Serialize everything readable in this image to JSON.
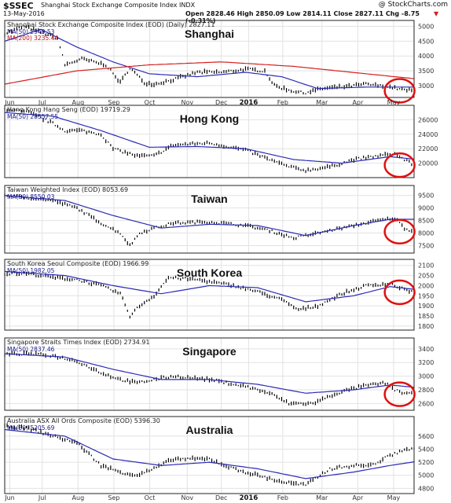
{
  "header": {
    "symbol": "$SSEC",
    "source": "Shanghai Stock Exchange Composite Index  INDX",
    "site": "@ StockCharts.com",
    "date": "13-May-2016",
    "ohlc": "Open 2828.46  High 2850.09  Low 2814.11  Close 2827.11  Chg -8.75 (-0.31%)",
    "chg_arrow": "▼"
  },
  "colors": {
    "price": "#000000",
    "ma50": "#2b2bb8",
    "ma200": "#d42020",
    "circle": "#e01010"
  },
  "x_axis": {
    "months": [
      "Jun",
      "Jul",
      "Aug",
      "Sep",
      "Oct",
      "Nov",
      "Dec",
      "2016",
      "Feb",
      "Mar",
      "Apr",
      "May"
    ],
    "bold_month": "2016"
  },
  "chart_data": [
    {
      "type": "line",
      "title": "Shanghai Stock Exchange Composite Index (EOD) (Daily) 2827.11",
      "label": "Shanghai",
      "ma_labels": [
        "MA(50) 2949.53",
        "MA(200) 3235.44"
      ],
      "yticks": [
        "5000",
        "4500",
        "4000",
        "3500",
        "3000"
      ],
      "ylim": [
        2600,
        5200
      ],
      "price_anchors": [
        [
          0,
          4750
        ],
        [
          8,
          5000
        ],
        [
          22,
          4600
        ],
        [
          25,
          3700
        ],
        [
          32,
          3900
        ],
        [
          42,
          3700
        ],
        [
          48,
          3100
        ],
        [
          52,
          3600
        ],
        [
          58,
          3100
        ],
        [
          62,
          3050
        ],
        [
          70,
          3200
        ],
        [
          80,
          3450
        ],
        [
          90,
          3450
        ],
        [
          100,
          3550
        ],
        [
          108,
          3500
        ],
        [
          112,
          3000
        ],
        [
          118,
          2850
        ],
        [
          124,
          2750
        ],
        [
          132,
          2900
        ],
        [
          140,
          2950
        ],
        [
          150,
          3050
        ],
        [
          160,
          2950
        ],
        [
          166,
          2850
        ],
        [
          170,
          2827
        ]
      ],
      "ma50_anchors": [
        [
          0,
          4500
        ],
        [
          15,
          4900
        ],
        [
          30,
          4300
        ],
        [
          45,
          3800
        ],
        [
          60,
          3400
        ],
        [
          80,
          3300
        ],
        [
          100,
          3450
        ],
        [
          115,
          3300
        ],
        [
          130,
          2900
        ],
        [
          150,
          2950
        ],
        [
          170,
          2950
        ]
      ],
      "ma200_anchors": [
        [
          0,
          3050
        ],
        [
          30,
          3500
        ],
        [
          60,
          3700
        ],
        [
          90,
          3800
        ],
        [
          120,
          3650
        ],
        [
          150,
          3400
        ],
        [
          170,
          3235
        ]
      ],
      "circle": true
    },
    {
      "type": "line",
      "title": "Hong Kong Hang Seng (EOD) 19719.29",
      "label": "Hong Kong",
      "ma_labels": [
        "MA(50) 20557.55"
      ],
      "yticks": [
        "26000",
        "24000",
        "22000",
        "20000"
      ],
      "ylim": [
        18000,
        28000
      ],
      "price_anchors": [
        [
          0,
          27500
        ],
        [
          10,
          27000
        ],
        [
          20,
          25500
        ],
        [
          25,
          24500
        ],
        [
          32,
          24500
        ],
        [
          40,
          24000
        ],
        [
          45,
          22000
        ],
        [
          50,
          21500
        ],
        [
          55,
          21000
        ],
        [
          62,
          21000
        ],
        [
          70,
          22500
        ],
        [
          85,
          22800
        ],
        [
          100,
          21800
        ],
        [
          110,
          20500
        ],
        [
          118,
          19500
        ],
        [
          125,
          19000
        ],
        [
          135,
          19500
        ],
        [
          145,
          20500
        ],
        [
          155,
          21000
        ],
        [
          162,
          21300
        ],
        [
          166,
          20500
        ],
        [
          170,
          19719
        ]
      ],
      "ma50_anchors": [
        [
          0,
          27000
        ],
        [
          20,
          26500
        ],
        [
          40,
          24500
        ],
        [
          60,
          22200
        ],
        [
          80,
          22300
        ],
        [
          100,
          22000
        ],
        [
          120,
          20500
        ],
        [
          140,
          20000
        ],
        [
          160,
          20900
        ],
        [
          170,
          20557
        ]
      ],
      "circle": true
    },
    {
      "type": "line",
      "title": "Taiwan Weighted Index (EOD) 8053.69",
      "label": "Taiwan",
      "ma_labels": [
        "MA(50) 8550.03"
      ],
      "yticks": [
        "9500",
        "9000",
        "8500",
        "8000",
        "7500"
      ],
      "ylim": [
        7200,
        9900
      ],
      "price_anchors": [
        [
          0,
          9500
        ],
        [
          10,
          9400
        ],
        [
          20,
          9300
        ],
        [
          30,
          9000
        ],
        [
          40,
          8400
        ],
        [
          48,
          8000
        ],
        [
          52,
          7500
        ],
        [
          56,
          8000
        ],
        [
          62,
          8200
        ],
        [
          70,
          8400
        ],
        [
          85,
          8450
        ],
        [
          100,
          8300
        ],
        [
          110,
          8100
        ],
        [
          120,
          7800
        ],
        [
          130,
          8000
        ],
        [
          145,
          8300
        ],
        [
          155,
          8500
        ],
        [
          162,
          8600
        ],
        [
          166,
          8200
        ],
        [
          170,
          8054
        ]
      ],
      "ma50_anchors": [
        [
          0,
          9500
        ],
        [
          25,
          9300
        ],
        [
          45,
          8700
        ],
        [
          65,
          8200
        ],
        [
          85,
          8350
        ],
        [
          105,
          8300
        ],
        [
          125,
          7900
        ],
        [
          145,
          8300
        ],
        [
          160,
          8550
        ],
        [
          170,
          8550
        ]
      ],
      "circle": true
    },
    {
      "type": "line",
      "title": "South Korea Seoul Composite (EOD) 1966.99",
      "label": "South Korea",
      "ma_labels": [
        "MA(50) 1982.05"
      ],
      "yticks": [
        "2100",
        "2050",
        "2000",
        "1950",
        "1900",
        "1850",
        "1800"
      ],
      "ylim": [
        1780,
        2130
      ],
      "price_anchors": [
        [
          0,
          2060
        ],
        [
          10,
          2060
        ],
        [
          20,
          2040
        ],
        [
          30,
          2030
        ],
        [
          40,
          2000
        ],
        [
          48,
          1960
        ],
        [
          52,
          1850
        ],
        [
          56,
          1900
        ],
        [
          62,
          1950
        ],
        [
          68,
          2040
        ],
        [
          80,
          2030
        ],
        [
          95,
          2000
        ],
        [
          105,
          1970
        ],
        [
          115,
          1930
        ],
        [
          122,
          1880
        ],
        [
          130,
          1900
        ],
        [
          140,
          1960
        ],
        [
          150,
          2000
        ],
        [
          160,
          2010
        ],
        [
          164,
          1990
        ],
        [
          170,
          1967
        ]
      ],
      "ma50_anchors": [
        [
          0,
          2070
        ],
        [
          25,
          2050
        ],
        [
          45,
          2000
        ],
        [
          65,
          1960
        ],
        [
          85,
          2000
        ],
        [
          105,
          1990
        ],
        [
          125,
          1920
        ],
        [
          145,
          1950
        ],
        [
          160,
          1995
        ],
        [
          170,
          1982
        ]
      ],
      "circle": true
    },
    {
      "type": "line",
      "title": "Singapore Straits Times Index (EOD) 2734.91",
      "label": "Singapore",
      "ma_labels": [
        "MA(50) 2837.46"
      ],
      "yticks": [
        "3400",
        "3200",
        "3000",
        "2800",
        "2600"
      ],
      "ylim": [
        2500,
        3560
      ],
      "price_anchors": [
        [
          0,
          3320
        ],
        [
          10,
          3330
        ],
        [
          20,
          3300
        ],
        [
          30,
          3220
        ],
        [
          40,
          3050
        ],
        [
          48,
          2950
        ],
        [
          55,
          2900
        ],
        [
          62,
          2950
        ],
        [
          70,
          3000
        ],
        [
          85,
          2950
        ],
        [
          100,
          2850
        ],
        [
          110,
          2750
        ],
        [
          118,
          2600
        ],
        [
          128,
          2600
        ],
        [
          138,
          2750
        ],
        [
          148,
          2850
        ],
        [
          158,
          2900
        ],
        [
          162,
          2800
        ],
        [
          166,
          2750
        ],
        [
          170,
          2735
        ]
      ],
      "ma50_anchors": [
        [
          0,
          3330
        ],
        [
          25,
          3280
        ],
        [
          45,
          3100
        ],
        [
          65,
          2950
        ],
        [
          85,
          2950
        ],
        [
          105,
          2880
        ],
        [
          125,
          2750
        ],
        [
          145,
          2800
        ],
        [
          160,
          2870
        ],
        [
          170,
          2837
        ]
      ],
      "circle": true
    },
    {
      "type": "line",
      "title": "Australia ASX All Ords Composite (EOD) 5396.30",
      "label": "Australia",
      "ma_labels": [
        "MA(50) 5205.69"
      ],
      "yticks": [
        "5600",
        "5400",
        "5200",
        "5000",
        "4800"
      ],
      "ylim": [
        4720,
        5900
      ],
      "price_anchors": [
        [
          0,
          5750
        ],
        [
          10,
          5720
        ],
        [
          20,
          5600
        ],
        [
          30,
          5500
        ],
        [
          40,
          5150
        ],
        [
          48,
          5050
        ],
        [
          55,
          5000
        ],
        [
          62,
          5100
        ],
        [
          70,
          5250
        ],
        [
          85,
          5250
        ],
        [
          95,
          5100
        ],
        [
          105,
          5000
        ],
        [
          115,
          4900
        ],
        [
          125,
          4850
        ],
        [
          135,
          5100
        ],
        [
          145,
          5150
        ],
        [
          152,
          5150
        ],
        [
          160,
          5300
        ],
        [
          166,
          5400
        ],
        [
          170,
          5396
        ]
      ],
      "ma50_anchors": [
        [
          0,
          5700
        ],
        [
          25,
          5600
        ],
        [
          45,
          5250
        ],
        [
          65,
          5150
        ],
        [
          85,
          5200
        ],
        [
          105,
          5100
        ],
        [
          125,
          4950
        ],
        [
          145,
          5050
        ],
        [
          160,
          5150
        ],
        [
          170,
          5206
        ]
      ],
      "circle": false
    }
  ]
}
